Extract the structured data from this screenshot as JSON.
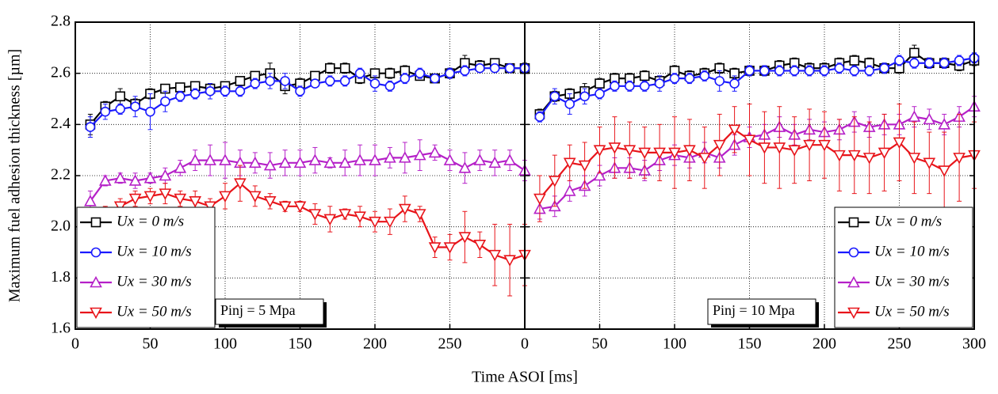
{
  "chart_data": [
    {
      "type": "line",
      "ylabel": "Maximum fuel adhesion thickness [µm]",
      "xlabel": "Time ASOI [ms]",
      "annotation": "Pinj = 5 Mpa",
      "x": [
        10,
        20,
        30,
        40,
        50,
        60,
        70,
        80,
        90,
        100,
        110,
        120,
        130,
        140,
        150,
        160,
        170,
        180,
        190,
        200,
        210,
        220,
        230,
        240,
        250,
        260,
        270,
        280,
        290,
        300
      ],
      "xlim": [
        0,
        300
      ],
      "xticks": [
        0,
        50,
        100,
        150,
        200,
        250
      ],
      "ylim": [
        1.6,
        2.8
      ],
      "yticks": [
        1.6,
        1.8,
        {
          "value": 2,
          "label": "2.0"
        },
        2.2,
        2.4,
        2.6,
        2.8
      ],
      "grid": true,
      "legend": "lower left",
      "series": [
        {
          "name": "Ux =   0 m/s",
          "color": "#000000",
          "marker": "square",
          "values": [
            2.4,
            2.47,
            2.51,
            2.48,
            2.52,
            2.54,
            2.545,
            2.55,
            2.54,
            2.55,
            2.57,
            2.59,
            2.6,
            2.55,
            2.56,
            2.59,
            2.62,
            2.62,
            2.58,
            2.6,
            2.6,
            2.61,
            2.59,
            2.58,
            2.6,
            2.64,
            2.63,
            2.64,
            2.62,
            2.62
          ],
          "errors": [
            0.04,
            0.02,
            0.03,
            0.02,
            0.02,
            0.01,
            0.01,
            0.01,
            0.02,
            0.01,
            0.01,
            0.01,
            0.04,
            0.03,
            0.02,
            0.01,
            0.02,
            0.02,
            0.02,
            0.01,
            0.02,
            0.02,
            0.01,
            0.01,
            0.02,
            0.03,
            0.02,
            0.01,
            0.01,
            0.02
          ]
        },
        {
          "name": "Ux = 10 m/s",
          "color": "#1a1aff",
          "marker": "circle",
          "values": [
            2.39,
            2.45,
            2.46,
            2.47,
            2.45,
            2.49,
            2.51,
            2.52,
            2.53,
            2.53,
            2.53,
            2.56,
            2.57,
            2.57,
            2.53,
            2.56,
            2.57,
            2.57,
            2.6,
            2.56,
            2.55,
            2.58,
            2.6,
            2.58,
            2.6,
            2.61,
            2.62,
            2.62,
            2.62,
            2.62
          ],
          "errors": [
            0.04,
            0.03,
            0.02,
            0.04,
            0.07,
            0.04,
            0.02,
            0.02,
            0.03,
            0.02,
            0.02,
            0.02,
            0.03,
            0.03,
            0.02,
            0.01,
            0.02,
            0.02,
            0.02,
            0.03,
            0.02,
            0.02,
            0.02,
            0.01,
            0.02,
            0.02,
            0.01,
            0.01,
            0.01,
            0.01
          ]
        },
        {
          "name": "Ux = 30 m/s",
          "color": "#b520c8",
          "marker": "triangle-up",
          "values": [
            2.1,
            2.18,
            2.19,
            2.18,
            2.19,
            2.2,
            2.23,
            2.26,
            2.26,
            2.26,
            2.25,
            2.25,
            2.24,
            2.25,
            2.25,
            2.26,
            2.25,
            2.25,
            2.26,
            2.26,
            2.27,
            2.27,
            2.28,
            2.29,
            2.26,
            2.23,
            2.26,
            2.25,
            2.26,
            2.22
          ],
          "errors": [
            0.04,
            0.02,
            0.02,
            0.03,
            0.02,
            0.03,
            0.03,
            0.04,
            0.06,
            0.07,
            0.05,
            0.04,
            0.05,
            0.05,
            0.05,
            0.05,
            0.02,
            0.05,
            0.06,
            0.06,
            0.04,
            0.06,
            0.06,
            0.03,
            0.04,
            0.06,
            0.04,
            0.05,
            0.04,
            0.04
          ]
        },
        {
          "name": "Ux = 50 m/s",
          "color": "#e8141a",
          "marker": "triangle-down",
          "values": [
            2.04,
            2.05,
            2.08,
            2.11,
            2.12,
            2.13,
            2.11,
            2.1,
            2.08,
            2.12,
            2.17,
            2.12,
            2.1,
            2.08,
            2.08,
            2.05,
            2.03,
            2.05,
            2.04,
            2.02,
            2.02,
            2.07,
            2.05,
            1.92,
            1.92,
            1.96,
            1.93,
            1.89,
            1.87,
            1.89
          ],
          "errors": [
            0.03,
            0.03,
            0.03,
            0.03,
            0.03,
            0.04,
            0.03,
            0.04,
            0.03,
            0.05,
            0.07,
            0.04,
            0.03,
            0.02,
            0.02,
            0.04,
            0.05,
            0.02,
            0.04,
            0.04,
            0.05,
            0.05,
            0.03,
            0.04,
            0.05,
            0.1,
            0.05,
            0.12,
            0.14,
            0.12
          ]
        }
      ]
    },
    {
      "type": "line",
      "annotation": "Pinj = 10 Mpa",
      "x": [
        10,
        20,
        30,
        40,
        50,
        60,
        70,
        80,
        90,
        100,
        110,
        120,
        130,
        140,
        150,
        160,
        170,
        180,
        190,
        200,
        210,
        220,
        230,
        240,
        250,
        260,
        270,
        280,
        290,
        300
      ],
      "xlim": [
        0,
        300
      ],
      "xticks": [
        0,
        50,
        100,
        150,
        200,
        250,
        300
      ],
      "ylim": [
        1.6,
        2.8
      ],
      "yticks": [
        1.6,
        1.8,
        {
          "value": 2,
          "label": "2.0"
        },
        2.2,
        2.4,
        2.6,
        2.8
      ],
      "grid": true,
      "legend": "lower right",
      "series": [
        {
          "name": "Ux =   0 m/s",
          "color": "#000000",
          "marker": "square",
          "values": [
            2.44,
            2.51,
            2.52,
            2.53,
            2.56,
            2.58,
            2.58,
            2.59,
            2.57,
            2.61,
            2.59,
            2.6,
            2.62,
            2.6,
            2.61,
            2.61,
            2.63,
            2.64,
            2.62,
            2.62,
            2.64,
            2.65,
            2.64,
            2.62,
            2.62,
            2.68,
            2.64,
            2.64,
            2.63,
            2.65
          ],
          "errors": [
            0.02,
            0.02,
            0.02,
            0.03,
            0.02,
            0.02,
            0.02,
            0.02,
            0.02,
            0.02,
            0.02,
            0.02,
            0.02,
            0.02,
            0.02,
            0.02,
            0.02,
            0.02,
            0.02,
            0.02,
            0.02,
            0.02,
            0.02,
            0.02,
            0.02,
            0.03,
            0.02,
            0.02,
            0.02,
            0.02
          ]
        },
        {
          "name": "Ux = 10 m/s",
          "color": "#1a1aff",
          "marker": "circle",
          "values": [
            2.43,
            2.51,
            2.48,
            2.51,
            2.52,
            2.55,
            2.55,
            2.55,
            2.56,
            2.58,
            2.58,
            2.59,
            2.57,
            2.56,
            2.61,
            2.61,
            2.61,
            2.61,
            2.61,
            2.61,
            2.62,
            2.61,
            2.61,
            2.62,
            2.65,
            2.64,
            2.64,
            2.64,
            2.65,
            2.66
          ],
          "errors": [
            0.02,
            0.03,
            0.04,
            0.03,
            0.02,
            0.02,
            0.02,
            0.02,
            0.03,
            0.02,
            0.02,
            0.02,
            0.04,
            0.03,
            0.02,
            0.02,
            0.02,
            0.02,
            0.02,
            0.02,
            0.02,
            0.02,
            0.02,
            0.02,
            0.02,
            0.02,
            0.02,
            0.02,
            0.02,
            0.02
          ]
        },
        {
          "name": "Ux = 30 m/s",
          "color": "#b520c8",
          "marker": "triangle-up",
          "values": [
            2.07,
            2.08,
            2.14,
            2.16,
            2.2,
            2.23,
            2.23,
            2.22,
            2.26,
            2.28,
            2.27,
            2.29,
            2.27,
            2.32,
            2.35,
            2.36,
            2.39,
            2.36,
            2.38,
            2.37,
            2.38,
            2.41,
            2.39,
            2.4,
            2.4,
            2.43,
            2.42,
            2.4,
            2.43,
            2.47
          ],
          "errors": [
            0.04,
            0.04,
            0.04,
            0.04,
            0.04,
            0.04,
            0.04,
            0.04,
            0.04,
            0.04,
            0.04,
            0.04,
            0.04,
            0.04,
            0.04,
            0.04,
            0.04,
            0.04,
            0.04,
            0.04,
            0.04,
            0.04,
            0.04,
            0.04,
            0.04,
            0.04,
            0.04,
            0.04,
            0.04,
            0.04
          ]
        },
        {
          "name": "Ux = 50 m/s",
          "color": "#e8141a",
          "marker": "triangle-down",
          "values": [
            2.11,
            2.18,
            2.25,
            2.24,
            2.3,
            2.31,
            2.3,
            2.29,
            2.29,
            2.29,
            2.3,
            2.27,
            2.32,
            2.38,
            2.34,
            2.31,
            2.31,
            2.3,
            2.32,
            2.32,
            2.28,
            2.28,
            2.27,
            2.29,
            2.33,
            2.27,
            2.25,
            2.22,
            2.27,
            2.28
          ],
          "errors": [
            0.09,
            0.1,
            0.07,
            0.09,
            0.09,
            0.12,
            0.11,
            0.1,
            0.11,
            0.14,
            0.12,
            0.12,
            0.12,
            0.09,
            0.14,
            0.14,
            0.16,
            0.13,
            0.14,
            0.13,
            0.14,
            0.15,
            0.14,
            0.15,
            0.15,
            0.14,
            0.12,
            0.15,
            0.17,
            0.13
          ]
        }
      ]
    }
  ]
}
